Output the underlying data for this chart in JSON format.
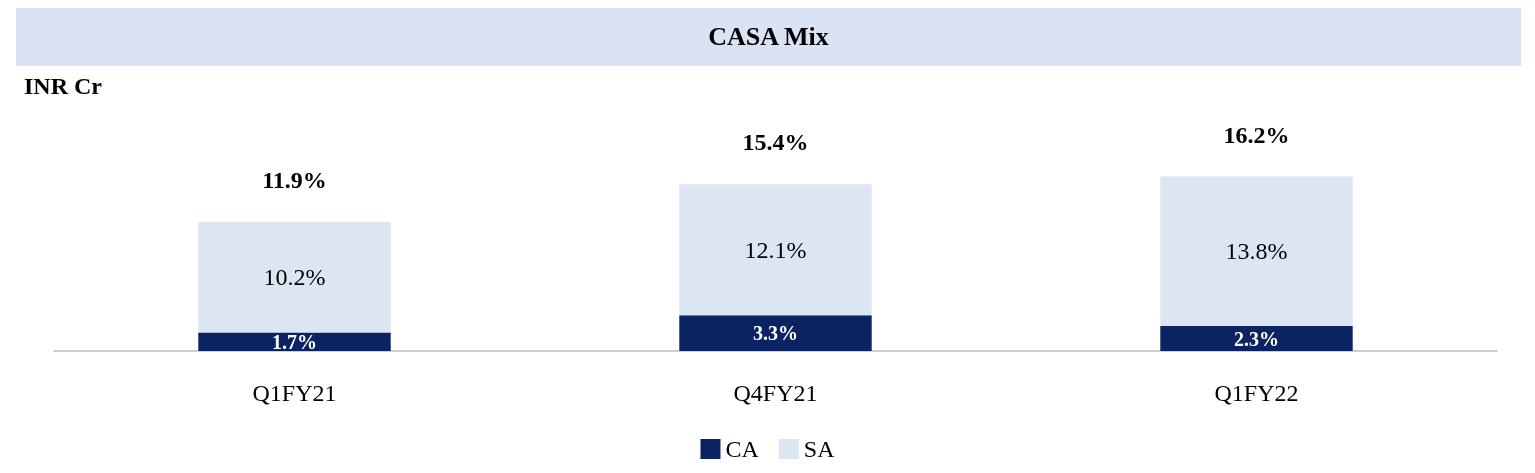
{
  "chart_data": {
    "type": "bar",
    "title": "CASA Mix",
    "ylabel": "INR Cr",
    "stacked": true,
    "categories": [
      "Q1FY21",
      "Q4FY21",
      "Q1FY22"
    ],
    "series": [
      {
        "name": "CA",
        "color": "#0b2263",
        "values": [
          1.7,
          3.3,
          2.3
        ],
        "value_labels": [
          "1.7%",
          "3.3%",
          "2.3%"
        ]
      },
      {
        "name": "SA",
        "color": "#dce6f2",
        "values": [
          10.2,
          12.1,
          13.8
        ],
        "value_labels": [
          "10.2%",
          "12.1%",
          "13.8%"
        ]
      }
    ],
    "totals": [
      "11.9%",
      "15.4%",
      "16.2%"
    ],
    "legend": "bottom"
  }
}
